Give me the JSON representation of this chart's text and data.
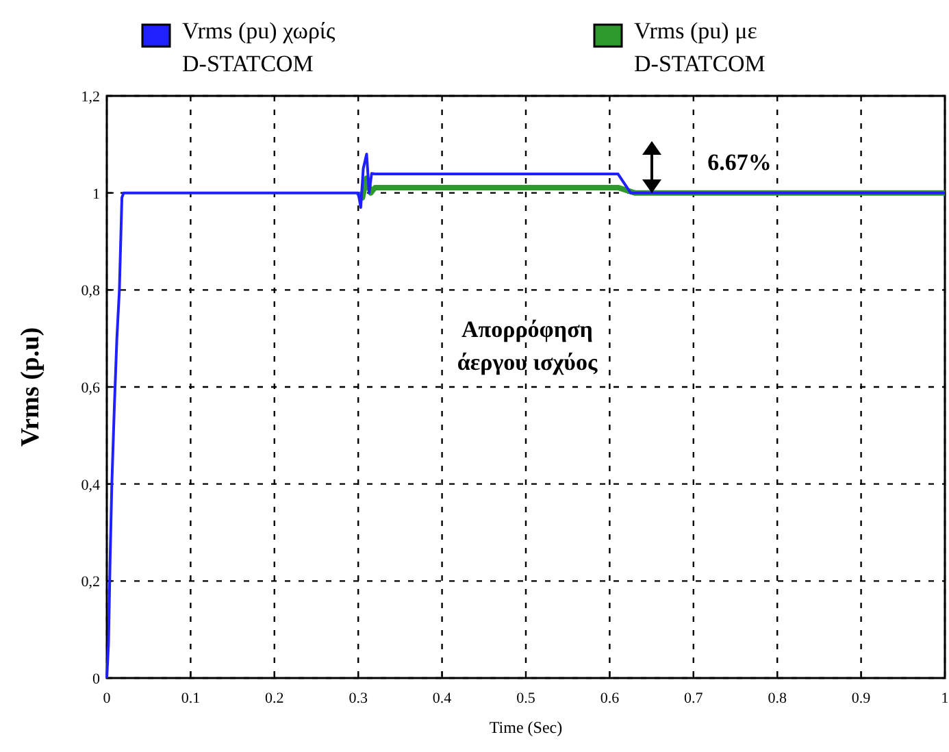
{
  "chart_data": {
    "type": "line",
    "xlabel": "Time (Sec)",
    "ylabel": "Vrms (p.u)",
    "xlim": [
      0,
      1
    ],
    "ylim": [
      0,
      1.2
    ],
    "xticks": [
      0,
      0.1,
      0.2,
      0.3,
      0.4,
      0.5,
      0.6,
      0.7,
      0.8,
      0.9,
      1
    ],
    "yticks": [
      0,
      {
        "value": 0.2,
        "label": "0,2"
      },
      {
        "value": 0.4,
        "label": "0,4"
      },
      {
        "value": 0.6,
        "label": "0,6"
      },
      {
        "value": 0.8,
        "label": "0,8"
      },
      1,
      {
        "value": 1.2,
        "label": "1,2"
      }
    ],
    "grid": true,
    "legend": "top",
    "line_style": "solid",
    "marker": "none",
    "series": [
      {
        "name": "Vrms (pu) με\nD-STATCOM",
        "color": "#2e9a2e",
        "x": [
          0.3,
          0.305,
          0.31,
          0.315,
          0.32,
          0.4,
          0.5,
          0.6,
          0.61,
          0.63,
          0.7,
          1
        ],
        "values": [
          1,
          0.99,
          1.03,
          1.0,
          1.011,
          1.011,
          1.011,
          1.011,
          1.011,
          1,
          1,
          1
        ]
      },
      {
        "name": "Vrms (pu) χωρίς\nD-STATCOM",
        "color": "#2020ff",
        "x": [
          0,
          0.002,
          0.004,
          0.006,
          0.009,
          0.012,
          0.015,
          0.018,
          0.02,
          0.3,
          0.303,
          0.306,
          0.31,
          0.313,
          0.316,
          0.32,
          0.4,
          0.5,
          0.6,
          0.61,
          0.625,
          0.7,
          1
        ],
        "values": [
          0,
          0.07,
          0.25,
          0.4,
          0.56,
          0.7,
          0.8,
          0.99,
          1,
          1,
          0.97,
          1.05,
          1.08,
          1.0,
          1.04,
          1.039,
          1.039,
          1.039,
          1.039,
          1.039,
          1,
          1,
          1
        ]
      }
    ],
    "annotations": [
      "6.67%",
      "Απορρόφηση\nάεργου ισχύος"
    ]
  }
}
